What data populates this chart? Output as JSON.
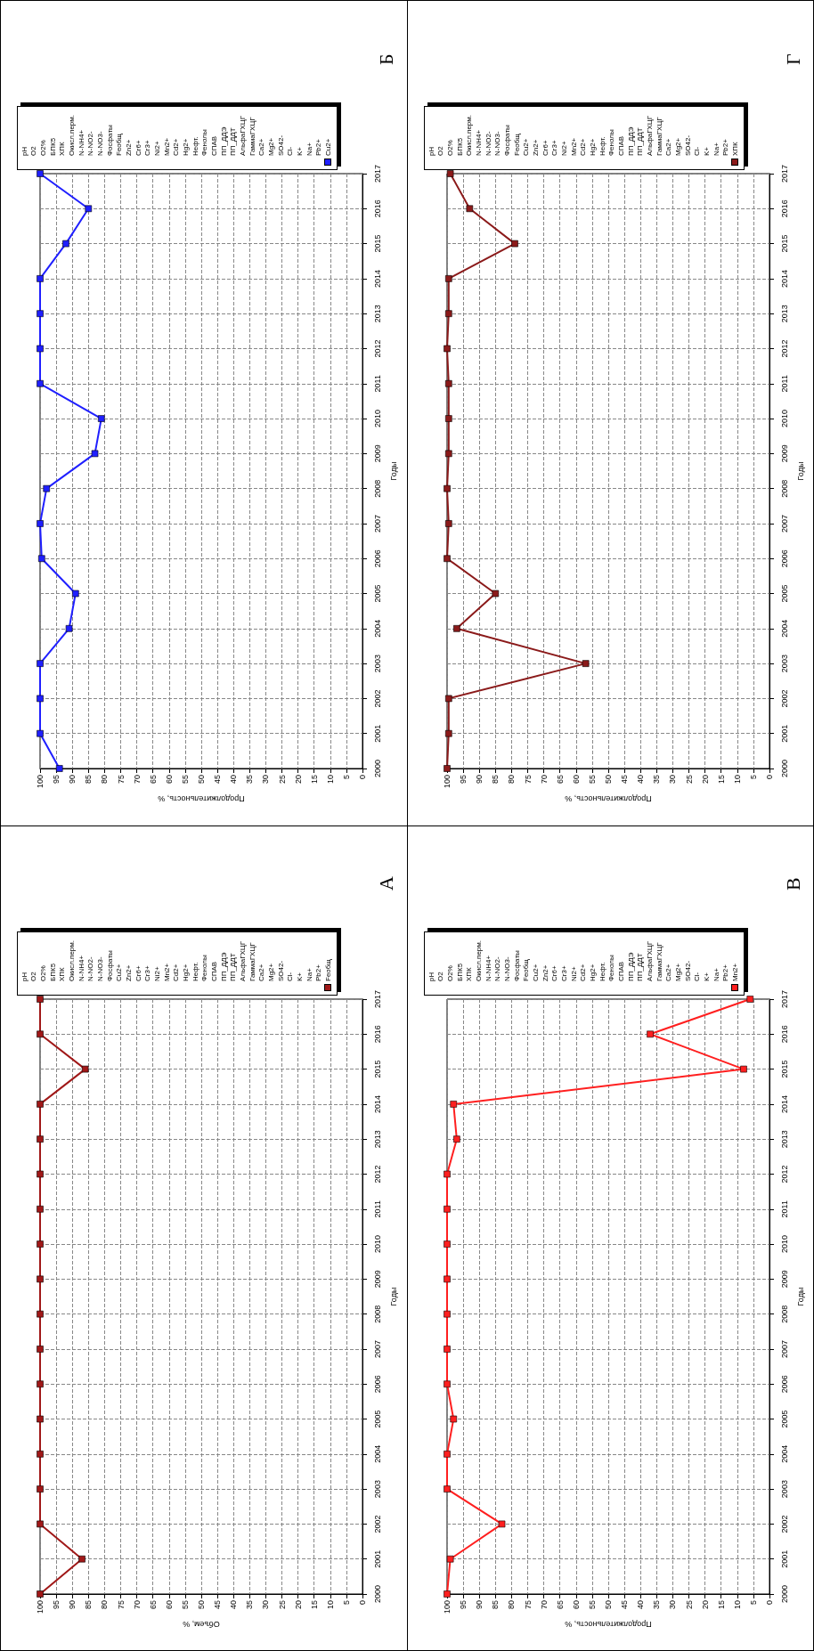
{
  "chart_data": [
    {
      "type": "line",
      "title": "Б",
      "xlabel": "Продолжительность, %",
      "ylabel": "Годы",
      "series": [
        {
          "name": "Cu2+",
          "color": "#1f1fff",
          "x": [
            94,
            100,
            100,
            100,
            91,
            89,
            99.5,
            100,
            98,
            83,
            81,
            100,
            100,
            100,
            100,
            92,
            85,
            100
          ],
          "values": [
            2000,
            2001,
            2002,
            2003,
            2004,
            2005,
            2006,
            2007,
            2008,
            2009,
            2010,
            2011,
            2012,
            2013,
            2014,
            2015,
            2016,
            2017
          ]
        }
      ],
      "xlim": [
        100,
        0
      ],
      "xticks": [
        0,
        5,
        10,
        15,
        20,
        25,
        30,
        35,
        40,
        45,
        50,
        55,
        60,
        65,
        70,
        75,
        80,
        85,
        90,
        95,
        100
      ],
      "ylim": [
        2000,
        2017
      ],
      "yticks": [
        2000,
        2001,
        2002,
        2003,
        2004,
        2005,
        2006,
        2007,
        2008,
        2009,
        2010,
        2011,
        2012,
        2013,
        2014,
        2015,
        2016,
        2017
      ],
      "grid": true,
      "legend": "top",
      "marker": "square",
      "line_style": "solid",
      "annotations": [
        "pH",
        "O2",
        "O2%",
        "БПК5",
        "ХПК",
        "Окисл.перм.",
        "N-NH4+",
        "N-NO2-",
        "N-NO3-",
        "Фосфаты",
        "Feобщ",
        "Zn2+",
        "Cr6+",
        "Cr3+",
        "Ni2+",
        "Mn2+",
        "Cd2+",
        "Hg2+",
        "Нефт.",
        "Фенолы",
        "СПАВ",
        "ПП_ДДЭ",
        "ПП_ДДТ",
        "АльфаГХЦГ",
        "ГаммаГХЦГ",
        "Ca2+",
        "Mg2+",
        "SO42-",
        "Cl-",
        "K+",
        "Na+",
        "Pb2+"
      ]
    },
    {
      "type": "line",
      "title": "Г",
      "xlabel": "Продолжительность, %",
      "ylabel": "Годы",
      "series": [
        {
          "name": "ХПК",
          "color": "#8b1a1a",
          "x": [
            100,
            99.5,
            99.5,
            57,
            97,
            85,
            100,
            99.5,
            100,
            99.5,
            99.5,
            99.5,
            100,
            99.5,
            99.5,
            79,
            93,
            99
          ],
          "values": [
            2000,
            2001,
            2002,
            2003,
            2004,
            2005,
            2006,
            2007,
            2008,
            2009,
            2010,
            2011,
            2012,
            2013,
            2014,
            2015,
            2016,
            2017
          ]
        }
      ],
      "xlim": [
        100,
        0
      ],
      "xticks": [
        0,
        5,
        10,
        15,
        20,
        25,
        30,
        35,
        40,
        45,
        50,
        55,
        60,
        65,
        70,
        75,
        80,
        85,
        90,
        95,
        100
      ],
      "ylim": [
        2000,
        2017
      ],
      "yticks": [
        2000,
        2001,
        2002,
        2003,
        2004,
        2005,
        2006,
        2007,
        2008,
        2009,
        2010,
        2011,
        2012,
        2013,
        2014,
        2015,
        2016,
        2017
      ],
      "grid": true,
      "legend": "top",
      "marker": "square",
      "line_style": "solid",
      "annotations": [
        "pH",
        "O2",
        "O2%",
        "БПК5",
        "Окисл.перм.",
        "N-NH4+",
        "N-NO2-",
        "N-NO3-",
        "Фосфаты",
        "Feобщ",
        "Cu2+",
        "Zn2+",
        "Cr6+",
        "Cr3+",
        "Ni2+",
        "Mn2+",
        "Cd2+",
        "Hg2+",
        "Нефт.",
        "Фенолы",
        "СПАВ",
        "ПП_ДДЭ",
        "ПП_ДДТ",
        "АльфаГХЦГ",
        "ГаммаГХЦГ",
        "Ca2+",
        "Mg2+",
        "SO42-",
        "Cl-",
        "K+",
        "Na+",
        "Pb2+"
      ]
    },
    {
      "type": "line",
      "title": "А",
      "xlabel": "Объем, %",
      "ylabel": "Годы",
      "series": [
        {
          "name": "Feобщ",
          "color": "#a01818",
          "x": [
            100,
            87,
            100,
            100,
            100,
            100,
            100,
            100,
            100,
            100,
            100,
            100,
            100,
            100,
            100,
            86,
            100,
            100
          ],
          "values": [
            2000,
            2001,
            2002,
            2003,
            2004,
            2005,
            2006,
            2007,
            2008,
            2009,
            2010,
            2011,
            2012,
            2013,
            2014,
            2015,
            2016,
            2017
          ]
        }
      ],
      "xlim": [
        100,
        0
      ],
      "xticks": [
        0,
        5,
        10,
        15,
        20,
        25,
        30,
        35,
        40,
        45,
        50,
        55,
        60,
        65,
        70,
        75,
        80,
        85,
        90,
        95,
        100
      ],
      "ylim": [
        2000,
        2017
      ],
      "yticks": [
        2000,
        2001,
        2002,
        2003,
        2004,
        2005,
        2006,
        2007,
        2008,
        2009,
        2010,
        2011,
        2012,
        2013,
        2014,
        2015,
        2016,
        2017
      ],
      "grid": true,
      "legend": "top",
      "marker": "square",
      "line_style": "solid",
      "annotations": [
        "pH",
        "O2",
        "O2%",
        "БПК5",
        "ХПК",
        "Окисл.перм.",
        "N-NH4+",
        "N-NO2-",
        "N-NO3-",
        "Фосфаты",
        "Cu2+",
        "Zn2+",
        "Cr6+",
        "Cr3+",
        "Ni2+",
        "Mn2+",
        "Cd2+",
        "Hg2+",
        "Нефт.",
        "Фенолы",
        "СПАВ",
        "ПП_ДДЭ",
        "ПП_ДДТ",
        "АльфаГХЦГ",
        "ГаммаГХЦГ",
        "Ca2+",
        "Mg2+",
        "SO42-",
        "Cl-",
        "K+",
        "Na+",
        "Pb2+"
      ]
    },
    {
      "type": "line",
      "title": "В",
      "xlabel": "Продолжительность, %",
      "ylabel": "Годы",
      "series": [
        {
          "name": "Mn2+",
          "color": "#ff1f1f",
          "x": [
            100,
            99,
            83,
            100,
            100,
            98,
            100,
            100,
            100,
            100,
            100,
            100,
            100,
            97,
            98,
            8,
            37,
            6
          ],
          "values": [
            2000,
            2001,
            2002,
            2003,
            2004,
            2005,
            2006,
            2007,
            2008,
            2009,
            2010,
            2011,
            2012,
            2013,
            2014,
            2015,
            2016,
            2017
          ]
        }
      ],
      "xlim": [
        100,
        0
      ],
      "xticks": [
        0,
        5,
        10,
        15,
        20,
        25,
        30,
        35,
        40,
        45,
        50,
        55,
        60,
        65,
        70,
        75,
        80,
        85,
        90,
        95,
        100
      ],
      "ylim": [
        2000,
        2017
      ],
      "yticks": [
        2000,
        2001,
        2002,
        2003,
        2004,
        2005,
        2006,
        2007,
        2008,
        2009,
        2010,
        2011,
        2012,
        2013,
        2014,
        2015,
        2016,
        2017
      ],
      "grid": true,
      "legend": "top",
      "marker": "square",
      "line_style": "solid",
      "annotations": [
        "pH",
        "O2",
        "O2%",
        "БПК5",
        "ХПК",
        "Окисл.перм.",
        "N-NH4+",
        "N-NO2-",
        "N-NO3-",
        "Фосфаты",
        "Feобщ",
        "Cu2+",
        "Zn2+",
        "Cr6+",
        "Cr3+",
        "Ni2+",
        "Cd2+",
        "Hg2+",
        "Нефт.",
        "Фенолы",
        "СПАВ",
        "ПП_ДДЭ",
        "ПП_ДДТ",
        "АльфаГХЦГ",
        "ГаммаГХЦГ",
        "Ca2+",
        "Mg2+",
        "SO42-",
        "Cl-",
        "K+",
        "Na+",
        "Pb2+"
      ]
    }
  ]
}
